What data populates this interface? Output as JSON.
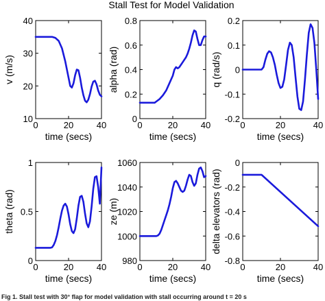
{
  "figure": {
    "title": "Stall Test for Model Validation",
    "caption": "Fig 1. Stall test with 30° flap for model validation with stall occurring around t = 20 s"
  },
  "colors": {
    "line": "#1a1adb",
    "axes": "#000000",
    "background": "#ffffff"
  },
  "chart_data": [
    {
      "type": "line",
      "xlabel": "time (secs)",
      "ylabel": "v (m/s)",
      "xlim": [
        0,
        40
      ],
      "ylim": [
        10,
        40
      ],
      "xticks": [
        0,
        20,
        40
      ],
      "yticks": [
        10,
        20,
        30,
        40
      ],
      "grid": false,
      "series": [
        {
          "x": [
            0,
            5,
            10,
            12,
            14,
            16,
            18,
            20,
            21,
            22,
            23,
            24,
            25,
            26,
            27,
            28,
            29,
            30,
            31,
            32,
            33,
            34,
            35,
            36,
            37,
            38,
            39,
            40
          ],
          "y": [
            35,
            35,
            35,
            34.7,
            33.8,
            31.5,
            27.5,
            22.5,
            20,
            19.5,
            20.8,
            23.3,
            25,
            24.8,
            22.5,
            19.5,
            17.2,
            15.5,
            15,
            15.8,
            17.5,
            19.8,
            21.3,
            21.6,
            20.5,
            18.6,
            17.3,
            16.8
          ]
        }
      ]
    },
    {
      "type": "line",
      "xlabel": "time (secs)",
      "ylabel": "alpha (rad)",
      "xlim": [
        0,
        40
      ],
      "ylim": [
        0,
        0.8
      ],
      "xticks": [
        0,
        20,
        40
      ],
      "yticks": [
        0,
        0.2,
        0.4,
        0.6,
        0.8
      ],
      "grid": false,
      "series": [
        {
          "x": [
            0,
            5,
            9,
            10,
            12,
            14,
            16,
            18,
            20,
            21,
            22,
            23,
            24,
            25,
            26,
            27,
            28,
            29,
            30,
            31,
            32,
            33,
            34,
            35,
            36,
            37,
            38,
            39,
            40
          ],
          "y": [
            0.13,
            0.13,
            0.13,
            0.14,
            0.16,
            0.19,
            0.23,
            0.29,
            0.35,
            0.4,
            0.42,
            0.41,
            0.42,
            0.44,
            0.46,
            0.48,
            0.5,
            0.53,
            0.57,
            0.62,
            0.68,
            0.72,
            0.71,
            0.65,
            0.6,
            0.6,
            0.64,
            0.67,
            0.67
          ]
        }
      ]
    },
    {
      "type": "line",
      "xlabel": "time (secs)",
      "ylabel": "q (rad/s)",
      "xlim": [
        0,
        40
      ],
      "ylim": [
        -0.2,
        0.2
      ],
      "xticks": [
        0,
        20,
        40
      ],
      "yticks": [
        -0.2,
        -0.1,
        0,
        0.1,
        0.2
      ],
      "grid": false,
      "series": [
        {
          "x": [
            0,
            5,
            9,
            10,
            11,
            12,
            13,
            14,
            15,
            16,
            17,
            18,
            19,
            20,
            21,
            22,
            23,
            24,
            25,
            26,
            27,
            28,
            29,
            30,
            31,
            32,
            33,
            34,
            35,
            36,
            37,
            38,
            39,
            40
          ],
          "y": [
            0,
            0,
            0,
            0,
            0.01,
            0.04,
            0.065,
            0.075,
            0.07,
            0.05,
            0.02,
            -0.02,
            -0.055,
            -0.075,
            -0.07,
            -0.04,
            0.02,
            0.08,
            0.11,
            0.1,
            0.05,
            -0.03,
            -0.11,
            -0.16,
            -0.165,
            -0.13,
            -0.04,
            0.06,
            0.15,
            0.185,
            0.17,
            0.11,
            0.0,
            -0.12
          ]
        }
      ]
    },
    {
      "type": "line",
      "xlabel": "time (secs)",
      "ylabel": "theta (rad)",
      "xlim": [
        0,
        40
      ],
      "ylim": [
        0,
        1
      ],
      "xticks": [
        0,
        20,
        40
      ],
      "yticks": [
        0,
        0.5,
        1
      ],
      "grid": false,
      "series": [
        {
          "x": [
            0,
            5,
            9,
            10,
            11,
            12,
            13,
            14,
            15,
            16,
            17,
            18,
            19,
            20,
            21,
            22,
            23,
            24,
            25,
            26,
            27,
            28,
            29,
            30,
            31,
            32,
            33,
            34,
            35,
            36,
            37,
            38,
            39,
            40
          ],
          "y": [
            0.13,
            0.13,
            0.13,
            0.135,
            0.16,
            0.2,
            0.26,
            0.34,
            0.43,
            0.51,
            0.56,
            0.58,
            0.55,
            0.47,
            0.37,
            0.3,
            0.28,
            0.32,
            0.43,
            0.56,
            0.65,
            0.66,
            0.6,
            0.48,
            0.38,
            0.34,
            0.4,
            0.55,
            0.73,
            0.85,
            0.86,
            0.75,
            0.58,
            0.95
          ]
        }
      ]
    },
    {
      "type": "line",
      "xlabel": "time (secs)",
      "ylabel": "ze (m)",
      "xlim": [
        0,
        40
      ],
      "ylim": [
        980,
        1060
      ],
      "xticks": [
        0,
        20,
        40
      ],
      "yticks": [
        980,
        1000,
        1020,
        1040,
        1060
      ],
      "grid": false,
      "series": [
        {
          "x": [
            0,
            5,
            9,
            10,
            11,
            12,
            13,
            14,
            15,
            16,
            17,
            18,
            19,
            20,
            21,
            22,
            23,
            24,
            25,
            26,
            27,
            28,
            29,
            30,
            31,
            32,
            33,
            34,
            35,
            36,
            37,
            38,
            39,
            40
          ],
          "y": [
            1000,
            1000,
            1000,
            1000,
            1000.5,
            1002,
            1005,
            1009,
            1013,
            1017,
            1021,
            1026,
            1032,
            1039,
            1044,
            1045,
            1043,
            1040,
            1037,
            1036,
            1037,
            1041,
            1046,
            1050,
            1049,
            1044,
            1041,
            1043,
            1050,
            1055,
            1056,
            1053,
            1048,
            1049
          ]
        }
      ]
    },
    {
      "type": "line",
      "xlabel": "time (secs)",
      "ylabel": "delta elevators (rad)",
      "xlim": [
        0,
        40
      ],
      "ylim": [
        -0.8,
        0
      ],
      "xticks": [
        0,
        20,
        40
      ],
      "yticks": [
        -0.8,
        -0.6,
        -0.4,
        -0.2,
        0
      ],
      "grid": false,
      "series": [
        {
          "x": [
            0,
            10,
            40
          ],
          "y": [
            -0.1,
            -0.1,
            -0.52
          ]
        }
      ]
    }
  ]
}
